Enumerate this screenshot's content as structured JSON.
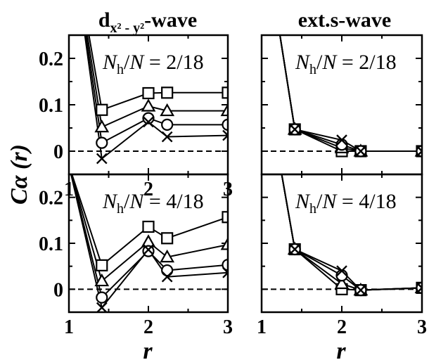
{
  "chart_data": [
    {
      "type": "line",
      "title": "d",
      "title_sub": "x² - y²",
      "title_suffix": "-wave",
      "annotation": "Nh/N = 2/18",
      "ylabel": "Cα (r)",
      "xlabel": "",
      "xlim": [
        1,
        3
      ],
      "ylim": [
        -0.05,
        0.25
      ],
      "xticks": [
        "1",
        "2",
        "3"
      ],
      "yticks": [
        "0",
        "0.1",
        "0.2"
      ],
      "zero_line": "dashed",
      "series": [
        {
          "marker": "square",
          "x": [
            1,
            1.414,
            2,
            2.236,
            3
          ],
          "y": [
            0.5,
            0.089,
            0.125,
            0.126,
            0.126
          ]
        },
        {
          "marker": "triangle",
          "x": [
            1,
            1.414,
            2,
            2.236,
            3
          ],
          "y": [
            0.5,
            0.052,
            0.097,
            0.087,
            0.087
          ]
        },
        {
          "marker": "circle",
          "x": [
            1,
            1.414,
            2,
            2.236,
            3
          ],
          "y": [
            0.5,
            0.018,
            0.071,
            0.057,
            0.057
          ]
        },
        {
          "marker": "cross",
          "x": [
            1,
            1.414,
            2,
            2.236,
            3
          ],
          "y": [
            0.5,
            -0.016,
            0.063,
            0.031,
            0.034
          ]
        }
      ]
    },
    {
      "type": "line",
      "title": "ext.s-wave",
      "annotation": "Nh/N = 2/18",
      "xlabel": "",
      "xlim": [
        1,
        3
      ],
      "ylim": [
        -0.05,
        0.25
      ],
      "zero_line": "dashed",
      "series": [
        {
          "marker": "square",
          "x": [
            1,
            1.414,
            2,
            2.236,
            3
          ],
          "y": [
            0.5,
            0.047,
            0.0,
            0.0,
            0.0
          ]
        },
        {
          "marker": "triangle",
          "x": [
            1,
            1.414,
            2,
            2.236,
            3
          ],
          "y": [
            0.5,
            0.047,
            0.007,
            0.0,
            0.0
          ]
        },
        {
          "marker": "circle",
          "x": [
            1,
            1.414,
            2,
            2.236,
            3
          ],
          "y": [
            0.5,
            0.047,
            0.014,
            0.0,
            0.0
          ]
        },
        {
          "marker": "cross",
          "x": [
            1,
            1.414,
            2,
            2.236,
            3
          ],
          "y": [
            0.5,
            0.047,
            0.024,
            0.0,
            0.0
          ]
        }
      ]
    },
    {
      "type": "line",
      "annotation": "Nh/N = 4/18",
      "xlabel": "r",
      "xlim": [
        1,
        3
      ],
      "ylim": [
        -0.05,
        0.25
      ],
      "xticks": [
        "1",
        "2",
        "3"
      ],
      "yticks": [
        "0",
        "0.1",
        "0.2"
      ],
      "zero_line": "dashed",
      "series": [
        {
          "marker": "square",
          "x": [
            1,
            1.414,
            2,
            2.236,
            3
          ],
          "y": [
            0.27,
            0.052,
            0.136,
            0.111,
            0.157
          ]
        },
        {
          "marker": "triangle",
          "x": [
            1,
            1.414,
            2,
            2.236,
            3
          ],
          "y": [
            0.27,
            0.018,
            0.103,
            0.07,
            0.097
          ]
        },
        {
          "marker": "circle",
          "x": [
            1,
            1.414,
            2,
            2.236,
            3
          ],
          "y": [
            0.27,
            -0.018,
            0.083,
            0.041,
            0.053
          ]
        },
        {
          "marker": "cross",
          "x": [
            1,
            1.414,
            2,
            2.236,
            3
          ],
          "y": [
            0.27,
            -0.04,
            0.086,
            0.027,
            0.036
          ]
        }
      ]
    },
    {
      "type": "line",
      "annotation": "Nh/N = 4/18",
      "xlabel": "r",
      "xlim": [
        1,
        3
      ],
      "ylim": [
        -0.05,
        0.25
      ],
      "xticks": [
        "1",
        "2",
        "3"
      ],
      "zero_line": "dashed",
      "series": [
        {
          "marker": "square",
          "x": [
            1,
            1.414,
            2,
            2.236,
            3
          ],
          "y": [
            0.5,
            0.087,
            0.0,
            -0.002,
            0.003
          ]
        },
        {
          "marker": "triangle",
          "x": [
            1,
            1.414,
            2,
            2.236,
            3
          ],
          "y": [
            0.5,
            0.087,
            0.012,
            -0.002,
            0.003
          ]
        },
        {
          "marker": "circle",
          "x": [
            1,
            1.414,
            2,
            2.236,
            3
          ],
          "y": [
            0.5,
            0.087,
            0.03,
            -0.002,
            0.003
          ]
        },
        {
          "marker": "cross",
          "x": [
            1,
            1.414,
            2,
            2.236,
            3
          ],
          "y": [
            0.5,
            0.087,
            0.04,
            -0.002,
            0.003
          ]
        }
      ]
    }
  ]
}
